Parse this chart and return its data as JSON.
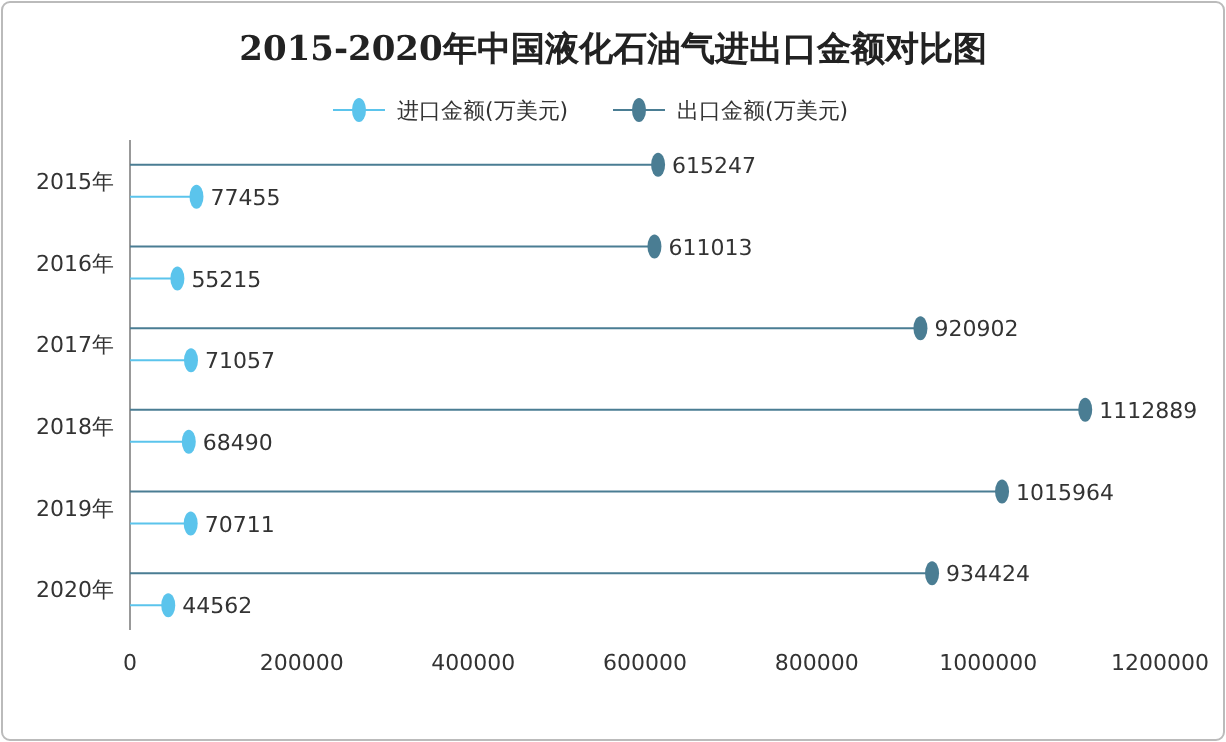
{
  "chart_data": {
    "type": "lollipop",
    "orientation": "horizontal",
    "title": "2015-2020年中国液化石油气进出口金额对比图",
    "categories": [
      "2015年",
      "2016年",
      "2017年",
      "2018年",
      "2019年",
      "2020年"
    ],
    "series": [
      {
        "name": "进口金额(万美元)",
        "color": "#5bc4ec",
        "values": [
          77455,
          55215,
          71057,
          68490,
          70711,
          44562
        ]
      },
      {
        "name": "出口金额(万美元)",
        "color": "#4a7d93",
        "values": [
          615247,
          611013,
          920902,
          1112889,
          1015964,
          934424
        ]
      }
    ],
    "xlim": [
      0,
      1200000
    ],
    "xticks": [
      0,
      200000,
      400000,
      600000,
      800000,
      1000000,
      1200000
    ],
    "data_labels": true,
    "legend": "top",
    "marker": "circle",
    "grid": false
  }
}
